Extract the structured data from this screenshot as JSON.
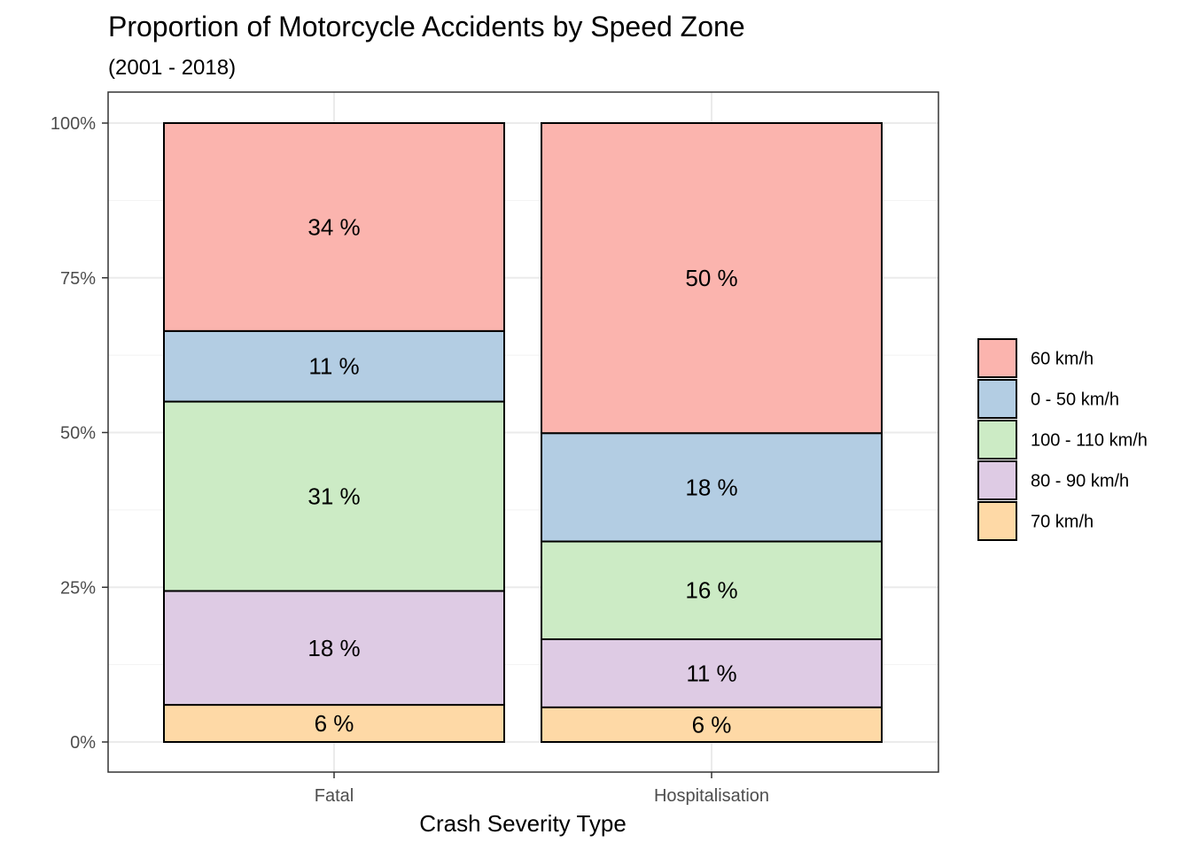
{
  "chart_data": {
    "type": "bar",
    "stacked": true,
    "title": "Proportion of Motorcycle Accidents by Speed Zone",
    "subtitle": "(2001 - 2018)",
    "xlabel": "Crash Severity Type",
    "ylabel": "",
    "ylim": [
      0,
      100
    ],
    "y_ticks": [
      0,
      25,
      50,
      75,
      100
    ],
    "y_tick_labels": [
      "0%",
      "25%",
      "50%",
      "75%",
      "100%"
    ],
    "grid": true,
    "legend_position": "right",
    "categories": [
      "Fatal",
      "Hospitalisation"
    ],
    "series": [
      {
        "name": "60 km/h",
        "color": "#FBB4AE",
        "values": [
          33.6,
          50.1
        ],
        "labels": [
          "34 %",
          "50 %"
        ]
      },
      {
        "name": "0 - 50 km/h",
        "color": "#B3CDE3",
        "values": [
          11.4,
          17.5
        ],
        "labels": [
          "11 %",
          "18 %"
        ]
      },
      {
        "name": "100 - 110 km/h",
        "color": "#CCEBC5",
        "values": [
          30.6,
          15.8
        ],
        "labels": [
          "31 %",
          "16 %"
        ]
      },
      {
        "name": "80 - 90 km/h",
        "color": "#DECBE4",
        "values": [
          18.4,
          11.0
        ],
        "labels": [
          "18 %",
          "11 %"
        ]
      },
      {
        "name": "70 km/h",
        "color": "#FED9A6",
        "values": [
          6.0,
          5.6
        ],
        "labels": [
          "6 %",
          "6 %"
        ]
      }
    ]
  }
}
